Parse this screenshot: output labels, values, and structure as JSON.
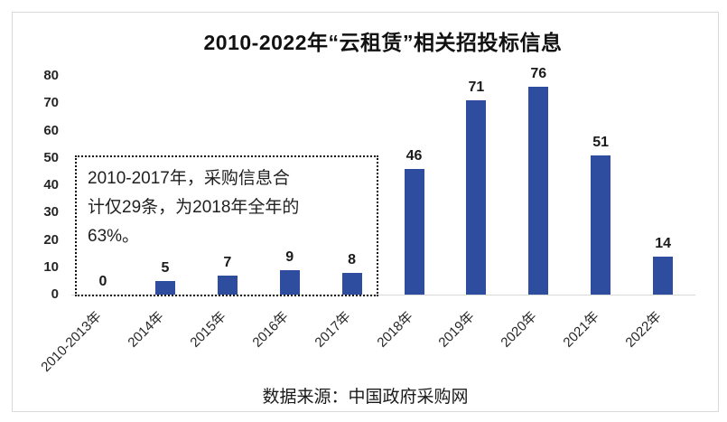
{
  "chart_data": {
    "type": "bar",
    "title": "2010-2022年“云租赁”相关招投标信息",
    "categories": [
      "2010-2013年",
      "2014年",
      "2015年",
      "2016年",
      "2017年",
      "2018年",
      "2019年",
      "2020年",
      "2021年",
      "2022年"
    ],
    "values": [
      0,
      5,
      7,
      9,
      8,
      46,
      71,
      76,
      51,
      14
    ],
    "ylim": [
      0,
      80
    ],
    "yticks": [
      0,
      10,
      20,
      30,
      40,
      50,
      60,
      70,
      80
    ],
    "bar_color": "#2F4D9E",
    "grid": false,
    "legend": false,
    "xlabel": "",
    "ylabel": "",
    "annotation": "2010-2017年，采购信息合计仅29条，为2018年全年的63%。",
    "annotation_lines": [
      "2010-2017年，采购信息合",
      "计仅29条，为2018年全年的",
      "63%。"
    ],
    "source": "数据来源：中国政府采购网"
  }
}
